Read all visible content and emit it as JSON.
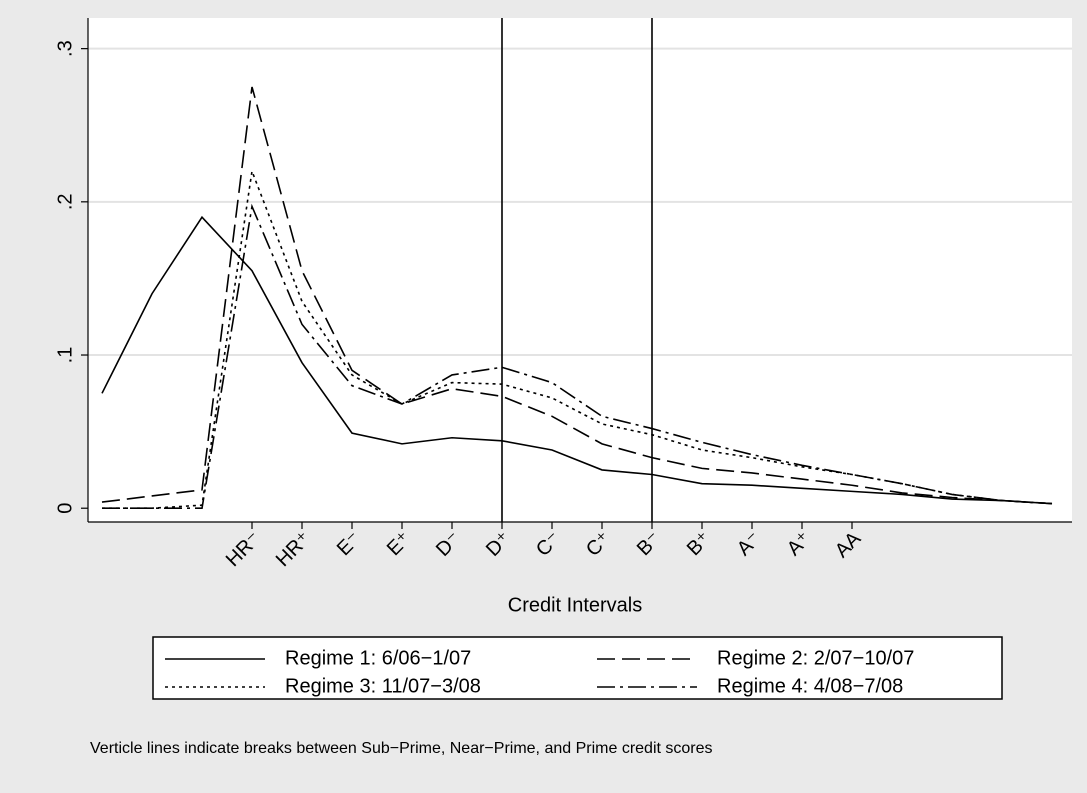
{
  "chart_data": {
    "type": "line",
    "x_label": "Credit Intervals",
    "note": "Verticle lines indicate  breaks between Sub−Prime, Near−Prime, and Prime credit scores",
    "categories": [
      null,
      null,
      null,
      "HR⁻",
      "HR⁺",
      "E⁻",
      "E⁺",
      "D⁻",
      "D⁺",
      "C⁻",
      "C⁺",
      "B⁻",
      "B⁺",
      "A⁻",
      "A⁺",
      "AA",
      null,
      null,
      null,
      null
    ],
    "vlines": [
      "D⁺",
      "B⁻"
    ],
    "series": [
      {
        "name": "Regime 1: 6/06−1/07",
        "color": "#000000",
        "style": "solid",
        "values": [
          0.075,
          0.14,
          0.19,
          0.155,
          0.095,
          0.049,
          0.042,
          0.046,
          0.044,
          0.038,
          0.025,
          0.022,
          0.016,
          0.015,
          0.013,
          0.011,
          0.009,
          0.006,
          0.005,
          0.003
        ]
      },
      {
        "name": "Regime 2: 2/07−10/07",
        "color": "#000000",
        "style": "dash",
        "values": [
          0.004,
          0.008,
          0.012,
          0.275,
          0.155,
          0.09,
          0.068,
          0.078,
          0.073,
          0.06,
          0.042,
          0.033,
          0.026,
          0.023,
          0.019,
          0.015,
          0.01,
          0.007,
          0.005,
          0.003
        ]
      },
      {
        "name": "Regime 3: 11/07−3/08",
        "color": "#000000",
        "style": "dot",
        "values": [
          0,
          0,
          0.002,
          0.22,
          0.135,
          0.087,
          0.068,
          0.082,
          0.081,
          0.072,
          0.055,
          0.048,
          0.038,
          0.033,
          0.027,
          0.022,
          0.016,
          0.009,
          0.005,
          0.003
        ]
      },
      {
        "name": "Regime 4: 4/08−7/08",
        "color": "#000000",
        "style": "dashdot",
        "values": [
          0,
          0,
          0,
          0.197,
          0.12,
          0.08,
          0.068,
          0.087,
          0.092,
          0.082,
          0.06,
          0.052,
          0.043,
          0.035,
          0.028,
          0.022,
          0.016,
          0.009,
          0.005,
          0.003
        ]
      }
    ],
    "ylim": [
      -0.009,
      0.32
    ],
    "yticks": [
      0,
      {
        "value": 0.1,
        "label": ".1"
      },
      {
        "value": 0.2,
        "label": ".2"
      },
      {
        "value": 0.3,
        "label": ".3"
      }
    ],
    "grid": true
  }
}
